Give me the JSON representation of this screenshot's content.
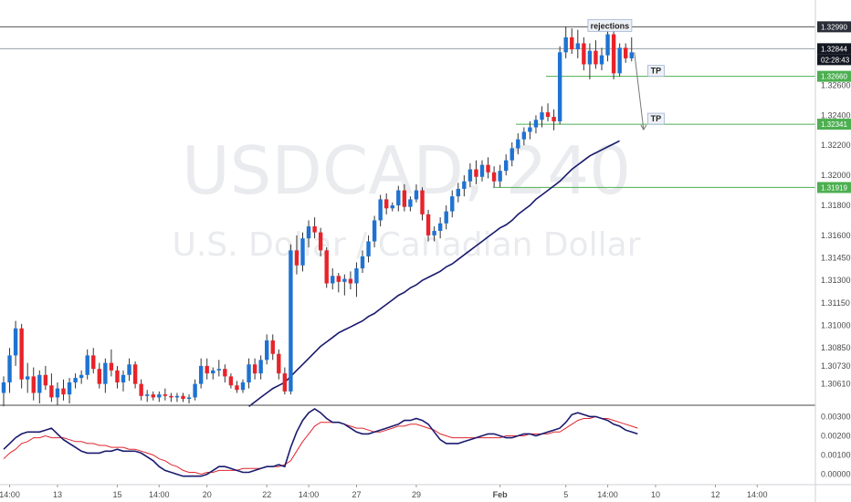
{
  "chart_data": {
    "type": "candlestick",
    "symbol": "USDCAD",
    "timeframe": "240",
    "watermark_title": "USDCAD, 240",
    "watermark_subtitle": "U.S. Dollar / Canadian Dollar",
    "price_axis": {
      "ylim": [
        1.3048,
        1.3312
      ],
      "ticks": [
        1.3299,
        1.326,
        1.324,
        1.322,
        1.32,
        1.318,
        1.316,
        1.3145,
        1.313,
        1.3115,
        1.31,
        1.3085,
        1.3073,
        1.3061
      ],
      "tick_labels": [
        "1.32990",
        "1.32600",
        "1.32400",
        "1.32200",
        "1.32000",
        "1.31800",
        "1.31600",
        "1.31450",
        "1.31300",
        "1.31150",
        "1.31000",
        "1.30850",
        "1.30730",
        "1.30610"
      ]
    },
    "x_axis": {
      "tick_labels": [
        "14:00",
        "13",
        "15",
        "14:00",
        "20",
        "22",
        "14:00",
        "27",
        "29",
        "Feb",
        "5",
        "14:00",
        "10",
        "12",
        "14:00"
      ],
      "tick_index": [
        1,
        9,
        19,
        26,
        34,
        44,
        51,
        59,
        69,
        83,
        94,
        101,
        109,
        119,
        126
      ]
    },
    "candles": [
      [
        1.3055,
        1.3066,
        1.3046,
        1.3062
      ],
      [
        1.3062,
        1.3085,
        1.3055,
        1.308
      ],
      [
        1.308,
        1.3103,
        1.3073,
        1.3098
      ],
      [
        1.3098,
        1.3101,
        1.3058,
        1.3064
      ],
      [
        1.3064,
        1.3075,
        1.3055,
        1.3066
      ],
      [
        1.3066,
        1.3072,
        1.305,
        1.3055
      ],
      [
        1.3055,
        1.307,
        1.3048,
        1.3067
      ],
      [
        1.3067,
        1.3073,
        1.3057,
        1.306
      ],
      [
        1.306,
        1.3068,
        1.3049,
        1.3052
      ],
      [
        1.3052,
        1.3062,
        1.3047,
        1.3058
      ],
      [
        1.3058,
        1.3064,
        1.305,
        1.3054
      ],
      [
        1.3054,
        1.3065,
        1.3048,
        1.3062
      ],
      [
        1.3062,
        1.3068,
        1.3058,
        1.3065
      ],
      [
        1.3065,
        1.307,
        1.3061,
        1.3067
      ],
      [
        1.3067,
        1.3084,
        1.3064,
        1.308
      ],
      [
        1.308,
        1.3085,
        1.3068,
        1.3071
      ],
      [
        1.3071,
        1.3075,
        1.3058,
        1.3061
      ],
      [
        1.3061,
        1.3078,
        1.3055,
        1.3075
      ],
      [
        1.3075,
        1.3084,
        1.3066,
        1.307
      ],
      [
        1.307,
        1.3073,
        1.3058,
        1.3062
      ],
      [
        1.3062,
        1.307,
        1.3056,
        1.3067
      ],
      [
        1.3067,
        1.3078,
        1.3063,
        1.3074
      ],
      [
        1.3074,
        1.3076,
        1.3058,
        1.3061
      ],
      [
        1.3061,
        1.3064,
        1.305,
        1.3053
      ],
      [
        1.3053,
        1.3057,
        1.3049,
        1.3054
      ],
      [
        1.3054,
        1.3056,
        1.305,
        1.3052
      ],
      [
        1.3052,
        1.3056,
        1.3049,
        1.3054
      ],
      [
        1.3054,
        1.3058,
        1.305,
        1.3053
      ],
      [
        1.3053,
        1.3055,
        1.3049,
        1.3052
      ],
      [
        1.3052,
        1.3055,
        1.3049,
        1.3053
      ],
      [
        1.3053,
        1.3055,
        1.3049,
        1.3051
      ],
      [
        1.3051,
        1.3054,
        1.3048,
        1.3052
      ],
      [
        1.3052,
        1.3064,
        1.305,
        1.3061
      ],
      [
        1.3061,
        1.3078,
        1.3058,
        1.3073
      ],
      [
        1.3073,
        1.3078,
        1.3064,
        1.3068
      ],
      [
        1.3068,
        1.3072,
        1.3064,
        1.307
      ],
      [
        1.307,
        1.3077,
        1.3066,
        1.3071
      ],
      [
        1.3071,
        1.3074,
        1.3062,
        1.3066
      ],
      [
        1.3066,
        1.3068,
        1.3058,
        1.306
      ],
      [
        1.306,
        1.3063,
        1.3055,
        1.3057
      ],
      [
        1.3057,
        1.3064,
        1.3055,
        1.3062
      ],
      [
        1.3062,
        1.3078,
        1.3058,
        1.3074
      ],
      [
        1.3074,
        1.3078,
        1.3064,
        1.3068
      ],
      [
        1.3068,
        1.308,
        1.3064,
        1.3077
      ],
      [
        1.3077,
        1.3094,
        1.3074,
        1.309
      ],
      [
        1.309,
        1.3094,
        1.3077,
        1.3081
      ],
      [
        1.3081,
        1.3084,
        1.3064,
        1.3068
      ],
      [
        1.3068,
        1.3072,
        1.3054,
        1.3056
      ],
      [
        1.3056,
        1.3154,
        1.3054,
        1.315
      ],
      [
        1.315,
        1.316,
        1.3134,
        1.314
      ],
      [
        1.314,
        1.3162,
        1.3136,
        1.3158
      ],
      [
        1.3158,
        1.317,
        1.3152,
        1.3166
      ],
      [
        1.3166,
        1.3172,
        1.3158,
        1.3162
      ],
      [
        1.3162,
        1.3165,
        1.3146,
        1.315
      ],
      [
        1.315,
        1.3152,
        1.3125,
        1.3128
      ],
      [
        1.3128,
        1.3138,
        1.3124,
        1.3133
      ],
      [
        1.3133,
        1.3135,
        1.3122,
        1.3129
      ],
      [
        1.3129,
        1.3134,
        1.312,
        1.3131
      ],
      [
        1.3131,
        1.3136,
        1.3124,
        1.3128
      ],
      [
        1.3128,
        1.3142,
        1.3119,
        1.3138
      ],
      [
        1.3138,
        1.315,
        1.3135,
        1.3146
      ],
      [
        1.3146,
        1.316,
        1.3142,
        1.3156
      ],
      [
        1.3156,
        1.3173,
        1.3152,
        1.317
      ],
      [
        1.317,
        1.3187,
        1.3166,
        1.3184
      ],
      [
        1.3184,
        1.3188,
        1.3174,
        1.3178
      ],
      [
        1.3178,
        1.3182,
        1.3176,
        1.318
      ],
      [
        1.318,
        1.3193,
        1.3176,
        1.319
      ],
      [
        1.319,
        1.3194,
        1.3176,
        1.3179
      ],
      [
        1.3179,
        1.3186,
        1.3176,
        1.3184
      ],
      [
        1.3184,
        1.3194,
        1.3182,
        1.319
      ],
      [
        1.319,
        1.3192,
        1.317,
        1.3174
      ],
      [
        1.3174,
        1.3177,
        1.3156,
        1.316
      ],
      [
        1.316,
        1.3166,
        1.3156,
        1.3163
      ],
      [
        1.3163,
        1.3172,
        1.3158,
        1.3168
      ],
      [
        1.3168,
        1.318,
        1.3164,
        1.3176
      ],
      [
        1.3176,
        1.319,
        1.3172,
        1.3186
      ],
      [
        1.3186,
        1.3195,
        1.3182,
        1.3191
      ],
      [
        1.3191,
        1.32,
        1.3186,
        1.3196
      ],
      [
        1.3196,
        1.3208,
        1.3192,
        1.3204
      ],
      [
        1.3204,
        1.321,
        1.3194,
        1.3199
      ],
      [
        1.3199,
        1.321,
        1.3196,
        1.3207
      ],
      [
        1.3207,
        1.3212,
        1.3198,
        1.3202
      ],
      [
        1.3202,
        1.3206,
        1.3192,
        1.3196
      ],
      [
        1.3196,
        1.3207,
        1.3192,
        1.3203
      ],
      [
        1.3203,
        1.3214,
        1.32,
        1.321
      ],
      [
        1.321,
        1.3222,
        1.3206,
        1.3218
      ],
      [
        1.3218,
        1.3228,
        1.3214,
        1.3224
      ],
      [
        1.3224,
        1.3232,
        1.322,
        1.3229
      ],
      [
        1.3229,
        1.3236,
        1.3224,
        1.3232
      ],
      [
        1.3232,
        1.324,
        1.3228,
        1.3237
      ],
      [
        1.3237,
        1.3246,
        1.3232,
        1.3242
      ],
      [
        1.3242,
        1.3248,
        1.3236,
        1.3239
      ],
      [
        1.3239,
        1.3244,
        1.323,
        1.3236
      ],
      [
        1.3236,
        1.3286,
        1.3234,
        1.3282
      ],
      [
        1.3282,
        1.3299,
        1.3278,
        1.3292
      ],
      [
        1.3292,
        1.3298,
        1.3281,
        1.3284
      ],
      [
        1.3284,
        1.3297,
        1.3278,
        1.3288
      ],
      [
        1.3288,
        1.3292,
        1.327,
        1.3274
      ],
      [
        1.3274,
        1.3288,
        1.3264,
        1.3283
      ],
      [
        1.3283,
        1.329,
        1.3271,
        1.3274
      ],
      [
        1.3274,
        1.3285,
        1.327,
        1.328
      ],
      [
        1.328,
        1.3298,
        1.3276,
        1.3294
      ],
      [
        1.3294,
        1.3297,
        1.3264,
        1.3268
      ],
      [
        1.3268,
        1.3288,
        1.3266,
        1.3285
      ],
      [
        1.3285,
        1.3288,
        1.3275,
        1.3278
      ],
      [
        1.3278,
        1.3292,
        1.3276,
        1.3282
      ]
    ],
    "moving_average": {
      "values": [
        null,
        null,
        null,
        null,
        null,
        null,
        null,
        null,
        null,
        null,
        null,
        null,
        null,
        null,
        null,
        null,
        null,
        null,
        null,
        null,
        null,
        null,
        null,
        null,
        null,
        null,
        null,
        null,
        null,
        null,
        null,
        null,
        null,
        null,
        null,
        null,
        null,
        null,
        null,
        null,
        null,
        1.3046,
        1.3049,
        1.3052,
        1.3055,
        1.3058,
        1.306,
        1.3062,
        1.3066,
        1.307,
        1.3074,
        1.3078,
        1.3082,
        1.3086,
        1.3089,
        1.3092,
        1.3095,
        1.3097,
        1.3099,
        1.3101,
        1.3103,
        1.3106,
        1.3108,
        1.3111,
        1.3114,
        1.3117,
        1.312,
        1.3122,
        1.3125,
        1.3127,
        1.313,
        1.3132,
        1.3134,
        1.3136,
        1.3139,
        1.3141,
        1.3144,
        1.3147,
        1.315,
        1.3153,
        1.3156,
        1.3159,
        1.3162,
        1.3165,
        1.3167,
        1.317,
        1.3174,
        1.3177,
        1.318,
        1.3184,
        1.3187,
        1.319,
        1.3193,
        1.3196,
        1.32,
        1.3204,
        1.3207,
        1.321,
        1.3213,
        1.3215,
        1.3217,
        1.3219,
        1.3221,
        1.3223
      ]
    },
    "horizontal_levels": [
      {
        "price": 1.3299,
        "label": "1.32990",
        "color": "#555555",
        "tag_color": "#2a2e39"
      },
      {
        "price": 1.32844,
        "label": "1.32844",
        "color": "#9aa0a6",
        "tag_color": "#131722"
      },
      {
        "price": 1.3266,
        "label": "1.32660",
        "color": "#4caf50",
        "tag_color": "#4caf50"
      },
      {
        "price": 1.32341,
        "label": "1.32341",
        "color": "#4caf50",
        "tag_color": "#4caf50"
      },
      {
        "price": 1.31919,
        "label": "1.31919",
        "color": "#4caf50",
        "tag_color": "#4caf50"
      }
    ],
    "countdown_label": "02:28:43",
    "annotations": [
      {
        "text": "rejections",
        "price": 1.3299,
        "index": 98
      },
      {
        "text": "TP",
        "price": 1.3266,
        "index": 108
      },
      {
        "text": "TP",
        "price": 1.32341,
        "index": 108
      }
    ],
    "oscillator": {
      "ylim": [
        -0.0004,
        0.0034
      ],
      "ticks": [
        0.003,
        0.002,
        0.001,
        0.0
      ],
      "tick_labels": [
        "0.00300",
        "0.00200",
        "0.00100",
        "0.00000"
      ],
      "macd": [
        0.0013,
        0.0016,
        0.0019,
        0.0021,
        0.0022,
        0.0022,
        0.0022,
        0.0023,
        0.0024,
        0.0021,
        0.0018,
        0.0016,
        0.0014,
        0.0012,
        0.0011,
        0.0011,
        0.0011,
        0.0012,
        0.0012,
        0.0013,
        0.0012,
        0.0012,
        0.0012,
        0.0011,
        0.0009,
        0.0007,
        0.0004,
        0.0002,
        0.0001,
        0.0,
        -0.0001,
        -0.0001,
        -0.0001,
        -0.0001,
        0.0,
        0.0002,
        0.0004,
        0.0004,
        0.0003,
        0.0002,
        0.0001,
        0.0001,
        0.0002,
        0.0003,
        0.0004,
        0.0004,
        0.0005,
        0.0004,
        0.0014,
        0.0022,
        0.0028,
        0.0032,
        0.0034,
        0.0032,
        0.0029,
        0.0027,
        0.0027,
        0.0026,
        0.0024,
        0.0022,
        0.0021,
        0.0021,
        0.0022,
        0.0023,
        0.0024,
        0.0025,
        0.0026,
        0.0028,
        0.0028,
        0.0029,
        0.0028,
        0.0026,
        0.0022,
        0.0018,
        0.0016,
        0.0016,
        0.0016,
        0.0017,
        0.0018,
        0.0019,
        0.002,
        0.0021,
        0.0021,
        0.002,
        0.0019,
        0.0019,
        0.002,
        0.0021,
        0.0021,
        0.002,
        0.0021,
        0.0022,
        0.0023,
        0.0024,
        0.0027,
        0.0031,
        0.0032,
        0.0031,
        0.003,
        0.003,
        0.0029,
        0.0028,
        0.0026,
        0.0025,
        0.0023,
        0.0022,
        0.0021
      ],
      "signal": [
        0.0008,
        0.0011,
        0.0013,
        0.0016,
        0.0017,
        0.0019,
        0.0019,
        0.002,
        0.0019,
        0.0019,
        0.0019,
        0.0018,
        0.0017,
        0.0017,
        0.0016,
        0.0016,
        0.0015,
        0.0015,
        0.0014,
        0.0014,
        0.0014,
        0.0013,
        0.0013,
        0.0012,
        0.0011,
        0.001,
        0.0008,
        0.0007,
        0.0005,
        0.0004,
        0.0002,
        0.0001,
        0.0001,
        0.0,
        0.0001,
        0.0001,
        0.0002,
        0.0002,
        0.0002,
        0.0002,
        0.0003,
        0.0003,
        0.0003,
        0.0003,
        0.0004,
        0.0004,
        0.0004,
        0.0005,
        0.0007,
        0.0012,
        0.0017,
        0.0021,
        0.0025,
        0.0027,
        0.0027,
        0.0027,
        0.0027,
        0.0026,
        0.0025,
        0.0024,
        0.0024,
        0.0023,
        0.0022,
        0.0022,
        0.0023,
        0.0024,
        0.0025,
        0.0025,
        0.0026,
        0.0026,
        0.0025,
        0.0024,
        0.0023,
        0.0021,
        0.002,
        0.0019,
        0.0019,
        0.0019,
        0.0019,
        0.0019,
        0.0019,
        0.0019,
        0.0019,
        0.0019,
        0.002,
        0.002,
        0.002,
        0.002,
        0.0021,
        0.0021,
        0.0021,
        0.0021,
        0.0022,
        0.0022,
        0.0024,
        0.0026,
        0.0028,
        0.0029,
        0.0029,
        0.003,
        0.0029,
        0.0029,
        0.0028,
        0.0027,
        0.0026,
        0.0025,
        0.0024
      ]
    },
    "colors": {
      "up": "#1e73d2",
      "down": "#e8232a",
      "ma": "#1a1a6e",
      "macd": "#1a1a6e",
      "signal": "#e0262e",
      "axis_text": "#4a4a4a",
      "separator": "#444444"
    }
  }
}
